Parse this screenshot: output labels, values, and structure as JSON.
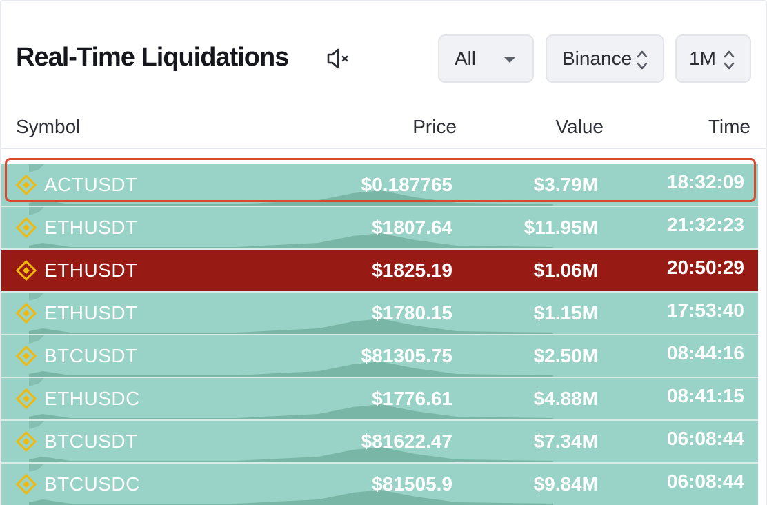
{
  "header": {
    "title": "Real-Time Liquidations",
    "filters": {
      "side": "All",
      "exchange": "Binance",
      "timeframe": "1M"
    }
  },
  "columns": {
    "symbol": "Symbol",
    "price": "Price",
    "value": "Value",
    "time": "Time"
  },
  "rows": [
    {
      "symbol": "ACTUSDT",
      "price": "$0.187765",
      "value": "$3.79M",
      "time": "18:32:09",
      "side": "long"
    },
    {
      "symbol": "ETHUSDT",
      "price": "$1807.64",
      "value": "$11.95M",
      "time": "21:32:23",
      "side": "long"
    },
    {
      "symbol": "ETHUSDT",
      "price": "$1825.19",
      "value": "$1.06M",
      "time": "20:50:29",
      "side": "short"
    },
    {
      "symbol": "ETHUSDT",
      "price": "$1780.15",
      "value": "$1.15M",
      "time": "17:53:40",
      "side": "long"
    },
    {
      "symbol": "BTCUSDT",
      "price": "$81305.75",
      "value": "$2.50M",
      "time": "08:44:16",
      "side": "long"
    },
    {
      "symbol": "ETHUSDC",
      "price": "$1776.61",
      "value": "$4.88M",
      "time": "08:41:15",
      "side": "long"
    },
    {
      "symbol": "BTCUSDT",
      "price": "$81622.47",
      "value": "$7.34M",
      "time": "06:08:44",
      "side": "long"
    },
    {
      "symbol": "BTCUSDC",
      "price": "$81505.9",
      "value": "$9.84M",
      "time": "06:08:44",
      "side": "long"
    }
  ],
  "colors": {
    "long_row": "#99d2c6",
    "short_row": "#981a14",
    "highlight": "#d9482c",
    "binance_icon": "#f0b90b"
  },
  "icons": {
    "mute": "speaker-muted-icon",
    "exchange": "binance-icon",
    "dropdown": "caret-down-icon",
    "sort": "up-down-chevron-icon"
  }
}
